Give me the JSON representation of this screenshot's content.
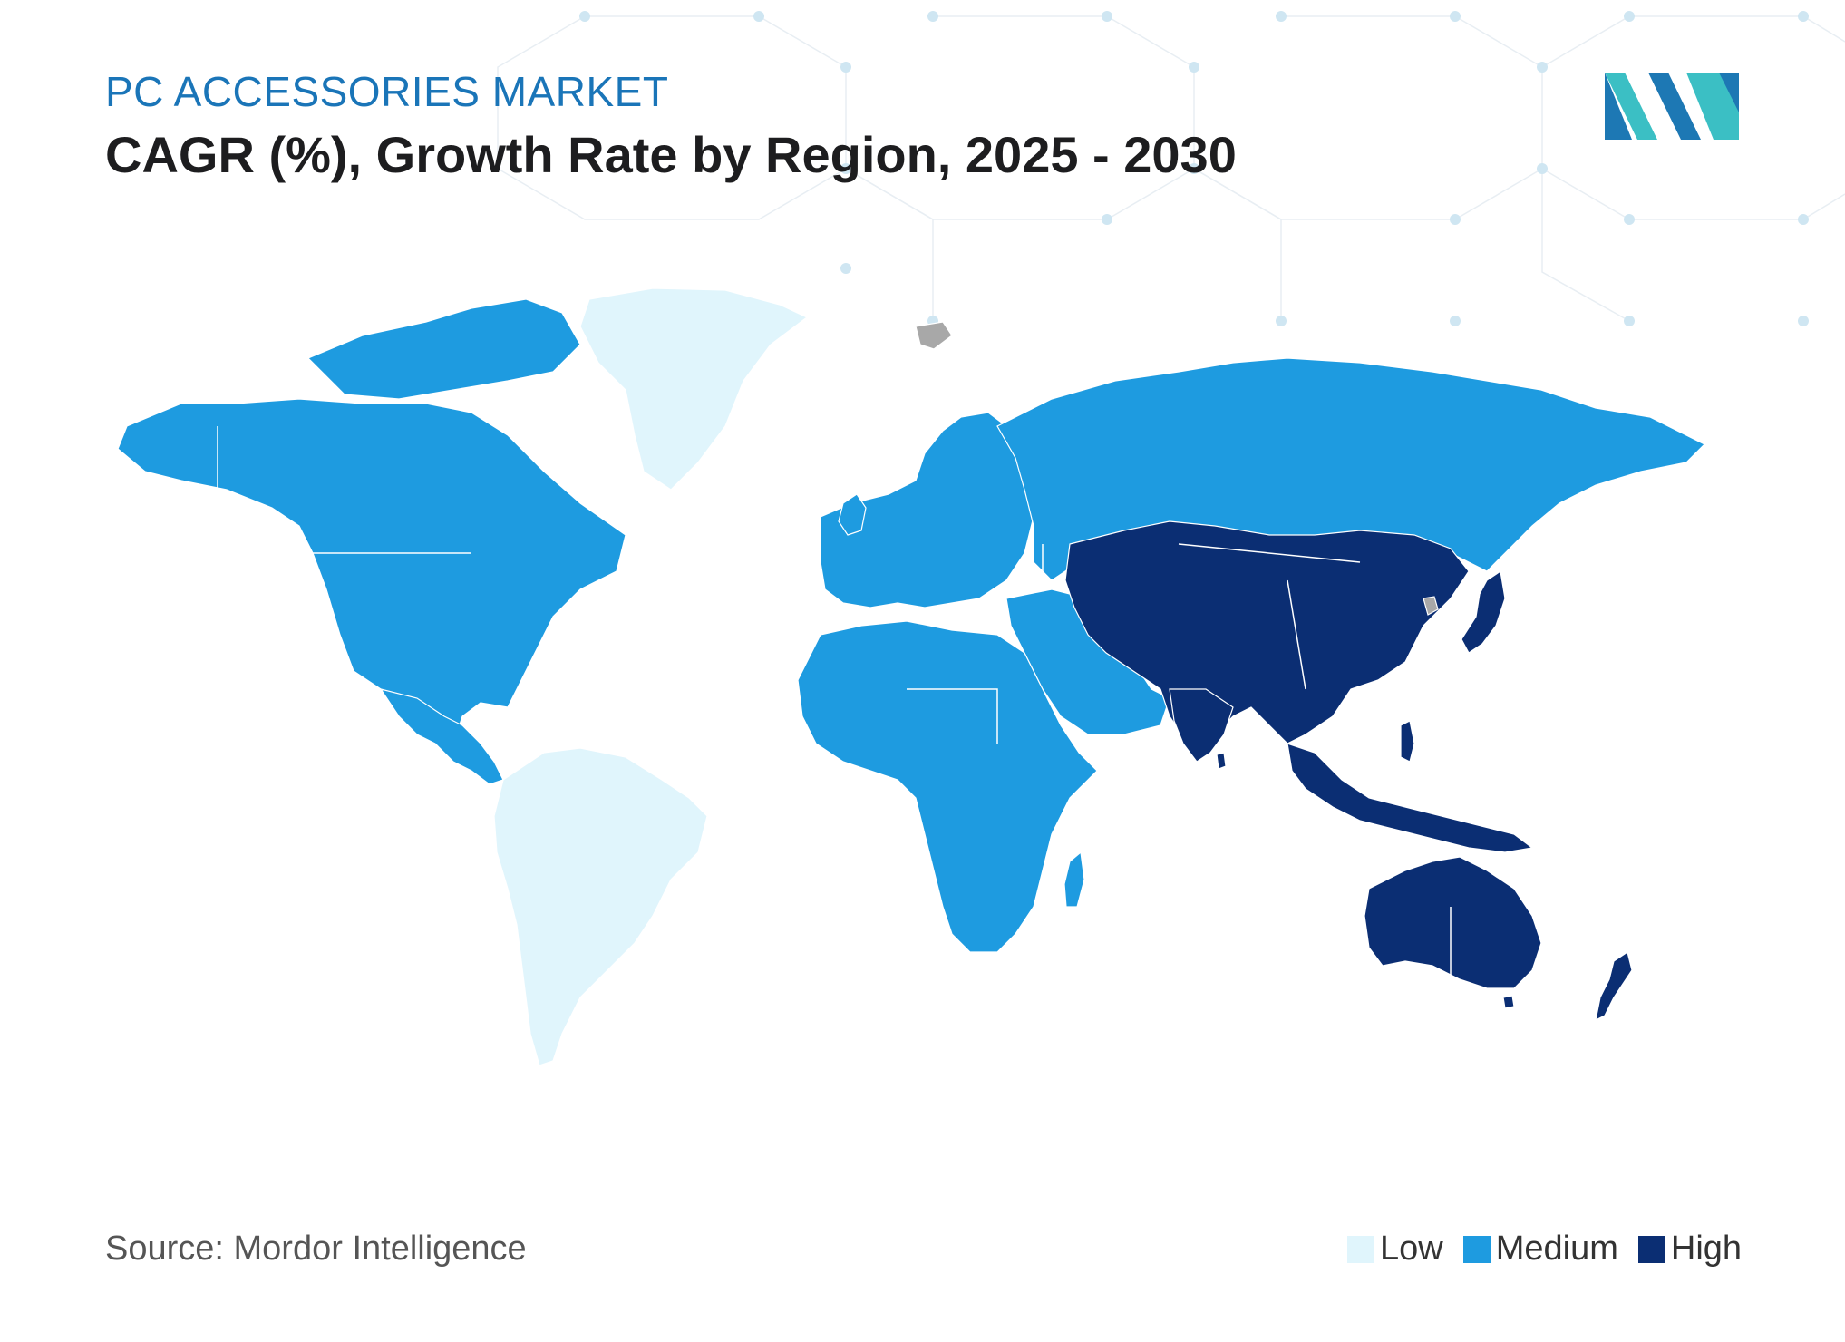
{
  "header": {
    "subtitle": "PC ACCESSORIES MARKET",
    "title": "CAGR (%), Growth Rate by Region, 2025 - 2030"
  },
  "source": "Source: Mordor Intelligence",
  "legend": [
    {
      "label": "Low",
      "color": "#e0f5fc"
    },
    {
      "label": "Medium",
      "color": "#1e9be0"
    },
    {
      "label": "High",
      "color": "#0b2e73"
    }
  ],
  "regions": [
    {
      "name": "North America",
      "level": "Medium"
    },
    {
      "name": "South America",
      "level": "Low"
    },
    {
      "name": "Greenland",
      "level": "Low"
    },
    {
      "name": "Europe",
      "level": "Medium"
    },
    {
      "name": "Russia",
      "level": "Medium"
    },
    {
      "name": "Middle East",
      "level": "Medium"
    },
    {
      "name": "Africa",
      "level": "Medium"
    },
    {
      "name": "Asia",
      "level": "High"
    },
    {
      "name": "Southeast Asia",
      "level": "High"
    },
    {
      "name": "Japan",
      "level": "High"
    },
    {
      "name": "Australia",
      "level": "High"
    },
    {
      "name": "New Zealand",
      "level": "High"
    }
  ],
  "colors": {
    "no_data": "#a8a8a8",
    "logo_dark": "#1d78b4",
    "logo_teal": "#3bbfc4"
  }
}
